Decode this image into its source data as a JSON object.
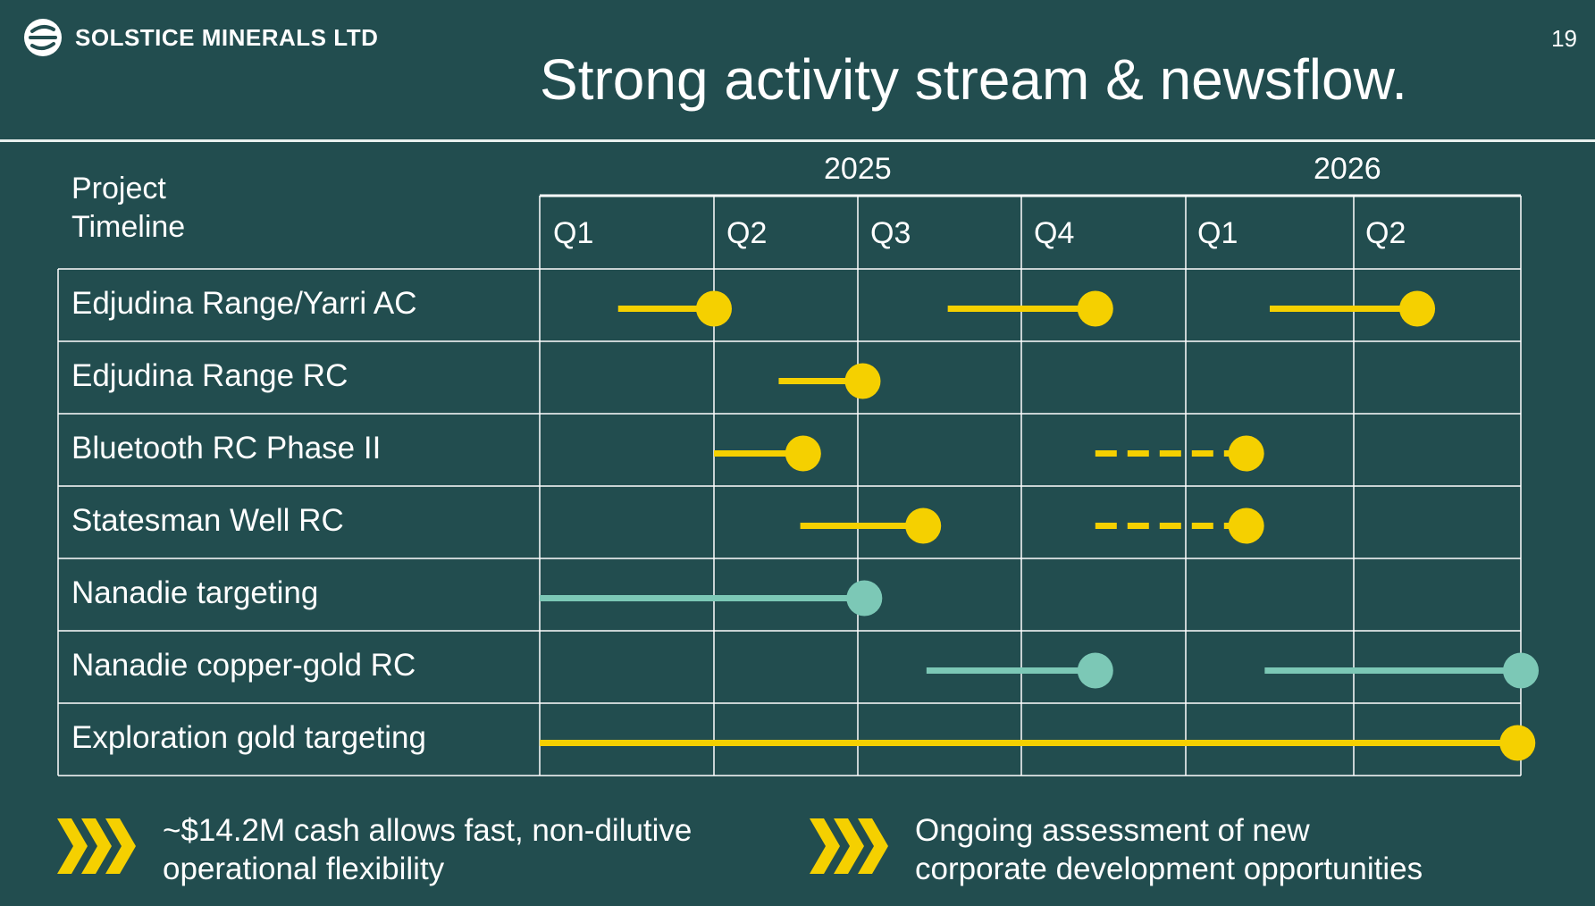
{
  "header": {
    "company": "SOLSTICE MINERALS LTD",
    "page_number": "19",
    "title": "Strong activity stream & newsflow."
  },
  "timeline": {
    "label_line1": "Project",
    "label_line2": "Timeline",
    "years": [
      "2025",
      "2026"
    ],
    "quarters": [
      "Q1",
      "Q2",
      "Q3",
      "Q4",
      "Q1",
      "Q2"
    ],
    "rows": [
      {
        "label": "Edjudina Range/Yarri AC",
        "bars": [
          {
            "start": 0.45,
            "end": 1.0,
            "style": "solid",
            "color": "#f5d000"
          },
          {
            "start": 2.55,
            "end": 3.45,
            "style": "solid",
            "color": "#f5d000"
          },
          {
            "start": 4.5,
            "end": 5.38,
            "style": "solid",
            "color": "#f5d000"
          }
        ]
      },
      {
        "label": "Edjudina Range RC",
        "bars": [
          {
            "start": 1.45,
            "end": 2.03,
            "style": "solid",
            "color": "#f5d000"
          }
        ]
      },
      {
        "label": "Bluetooth RC Phase II",
        "bars": [
          {
            "start": 1.0,
            "end": 1.62,
            "style": "solid",
            "color": "#f5d000"
          },
          {
            "start": 3.45,
            "end": 4.36,
            "style": "dashed",
            "color": "#f5d000"
          }
        ]
      },
      {
        "label": "Statesman Well RC",
        "bars": [
          {
            "start": 1.6,
            "end": 2.4,
            "style": "solid",
            "color": "#f5d000"
          },
          {
            "start": 3.45,
            "end": 4.36,
            "style": "dashed",
            "color": "#f5d000"
          }
        ]
      },
      {
        "label": "Nanadie targeting",
        "bars": [
          {
            "start": 0.0,
            "end": 2.04,
            "style": "solid",
            "color": "#7cc8b6"
          }
        ]
      },
      {
        "label": "Nanadie copper-gold RC",
        "bars": [
          {
            "start": 2.42,
            "end": 3.45,
            "style": "solid",
            "color": "#7cc8b6"
          },
          {
            "start": 4.47,
            "end": 6.0,
            "style": "solid",
            "color": "#7cc8b6"
          }
        ]
      },
      {
        "label": "Exploration gold targeting",
        "bars": [
          {
            "start": 0.0,
            "end": 5.98,
            "style": "solid",
            "color": "#f5d000"
          }
        ]
      }
    ]
  },
  "footer": [
    {
      "line1": "~$14.2M cash allows fast, non-dilutive",
      "line2": "operational flexibility",
      "icon": "chevrons-icon"
    },
    {
      "line1": "Ongoing assessment of new",
      "line2": "corporate development opportunities",
      "icon": "chevrons-icon"
    }
  ],
  "colors": {
    "background": "#224d4f",
    "accent_yellow": "#f5d000",
    "accent_teal": "#7cc8b6",
    "grid": "#ffffff"
  }
}
